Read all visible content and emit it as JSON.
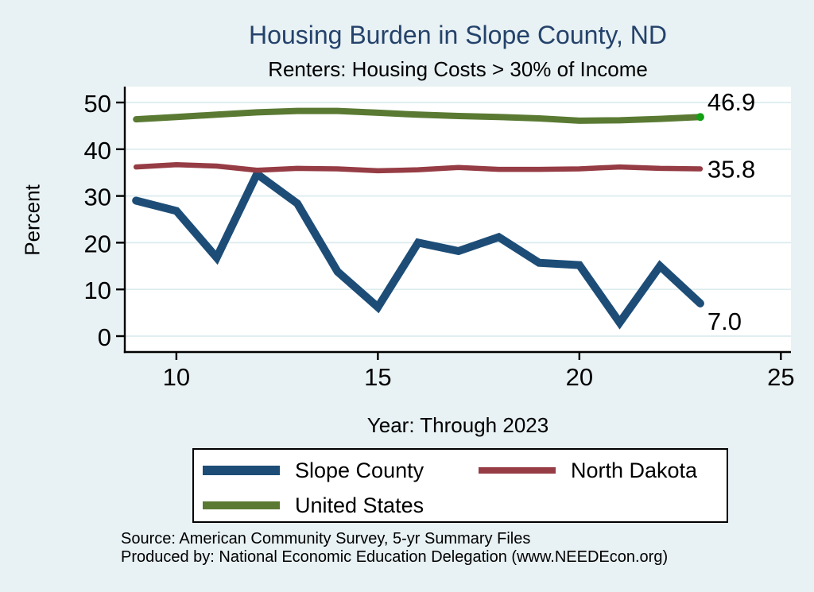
{
  "title": "Housing Burden in Slope County, ND",
  "subtitle": "Renters: Housing Costs > 30% of Income",
  "y_axis_title": "Percent",
  "x_axis_title": "Year: Through 2023",
  "source_line1": "Source: American Community Survey, 5-yr Summary Files",
  "source_line2": "Produced by: National Economic Education Delegation (www.NEEDEcon.org)",
  "colors": {
    "background": "#e8f1f3",
    "plot_background": "#ffffff",
    "gridline": "#dcebee",
    "axis": "#000000",
    "title_text": "#24426b",
    "end_dot": "#14a014"
  },
  "chart_data": {
    "type": "line",
    "title": "Housing Burden in Slope County, ND",
    "subtitle": "Renters: Housing Costs > 30% of Income",
    "xlabel": "Year: Through 2023",
    "ylabel": "Percent",
    "xlim": [
      9,
      25
    ],
    "ylim": [
      0,
      50
    ],
    "grid": true,
    "legend_position": "bottom",
    "x": [
      9,
      10,
      11,
      12,
      13,
      14,
      15,
      16,
      17,
      18,
      19,
      20,
      21,
      22,
      23
    ],
    "x_tick_values": [
      10,
      15,
      20,
      25
    ],
    "x_tick_labels": [
      "10",
      "15",
      "20",
      "25"
    ],
    "y_tick_values": [
      0,
      10,
      20,
      30,
      40,
      50
    ],
    "y_tick_labels": [
      "0",
      "10",
      "20",
      "30",
      "40",
      "50"
    ],
    "series": [
      {
        "name": "Slope County",
        "color": "#1d4d77",
        "width": 10,
        "end_label": "7.0",
        "end_label_dy": 22,
        "end_marker": false,
        "values": [
          29.0,
          26.8,
          16.8,
          34.7,
          28.4,
          13.8,
          6.2,
          20.0,
          18.2,
          21.2,
          15.7,
          15.2,
          2.9,
          15.0,
          7.0
        ]
      },
      {
        "name": "North Dakota",
        "color": "#963c44",
        "width": 6.5,
        "end_label": "35.8",
        "end_label_dy": 0,
        "end_marker": false,
        "values": [
          36.2,
          36.7,
          36.4,
          35.5,
          35.9,
          35.8,
          35.4,
          35.6,
          36.1,
          35.7,
          35.7,
          35.8,
          36.2,
          35.9,
          35.8
        ]
      },
      {
        "name": "United States",
        "color": "#5a7a33",
        "width": 8,
        "end_label": "46.9",
        "end_label_dy": -19,
        "end_marker": true,
        "values": [
          46.4,
          46.9,
          47.4,
          47.9,
          48.2,
          48.2,
          47.8,
          47.4,
          47.1,
          46.9,
          46.6,
          46.1,
          46.2,
          46.5,
          46.9
        ]
      }
    ]
  }
}
